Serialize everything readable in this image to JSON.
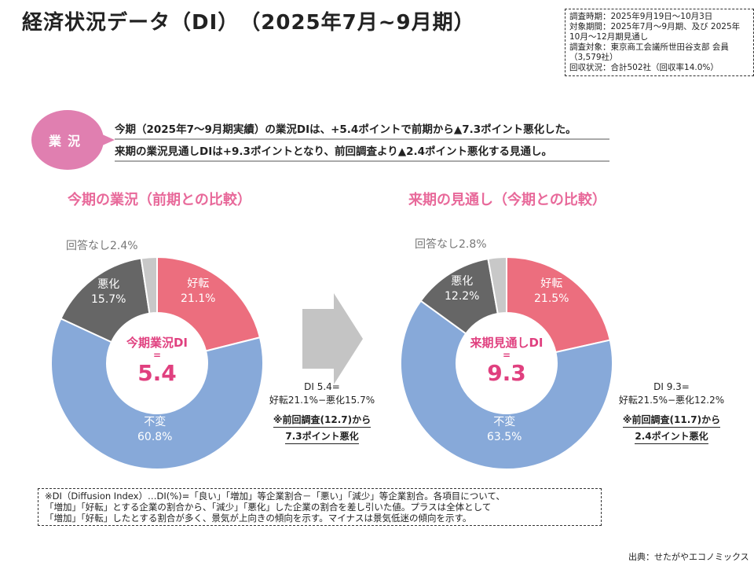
{
  "title": "経済状況データ（DI）　（2025年7月~9月期）",
  "info": [
    "調査時期：2025年9月19日～10月3日",
    "対象期間：2025年7月～9月期、及び 2025年10月～12月期見通し",
    "調査対象：東京商工会議所世田谷支部 会員（3,579社）",
    "回収状況：合計502社（回収率14.0%）"
  ],
  "summary": {
    "badge": "業況",
    "line1": "今期（2025年7～9月期実績）の業況DIは、+5.4ポイントで前期から▲7.3ポイント悪化した。",
    "line2": "来期の業況見通しDIは+9.3ポイントとなり、前回調査より▲2.4ポイント悪化する見通し。"
  },
  "chart_data": [
    {
      "type": "pie",
      "title": "今期の業況（前期との比較）",
      "center_label": "今期業況DI",
      "center_eq": "=",
      "center_value": "5.4",
      "categories": [
        "好転",
        "不変",
        "悪化",
        "回答なし"
      ],
      "values": [
        21.1,
        60.8,
        15.7,
        2.4
      ],
      "labels": [
        "21.1%",
        "60.8%",
        "15.7%",
        "2.4%"
      ],
      "note": {
        "formula1": "DI 5.4=",
        "formula2": "好転21.1%−悪化15.7%",
        "ref": "※前回調査(12.7)から",
        "change": "7.3ポイント悪化"
      }
    },
    {
      "type": "pie",
      "title": "来期の見通し（今期との比較）",
      "center_label": "来期見通しDI",
      "center_eq": "=",
      "center_value": "9.3",
      "categories": [
        "好転",
        "不変",
        "悪化",
        "回答なし"
      ],
      "values": [
        21.5,
        63.5,
        12.2,
        2.8
      ],
      "labels": [
        "21.5%",
        "63.5%",
        "12.2%",
        "2.8%"
      ],
      "note": {
        "formula1": "DI 9.3=",
        "formula2": "好転21.5%−悪化12.2%",
        "ref": "※前回調査(11.7)から",
        "change": "2.4ポイント悪化"
      }
    }
  ],
  "colors": [
    "#ec6e7e",
    "#87a9d9",
    "#666666",
    "#c8c8c8"
  ],
  "footnote": [
    "※DI（Diffusion Index）…DI(%)=「良い」「増加」等企業割合－「悪い」「減少」等企業割合。各項目について、",
    "「増加」「好転」とする企業の割合から、「減少」「悪化」した企業の割合を差し引いた値。プラスは全体として",
    "「増加」「好転」したとする割合が多く、景気が上向きの傾向を示す。マイナスは景気低迷の傾向を示す。"
  ],
  "source": "出典：せたがやエコノミックス"
}
